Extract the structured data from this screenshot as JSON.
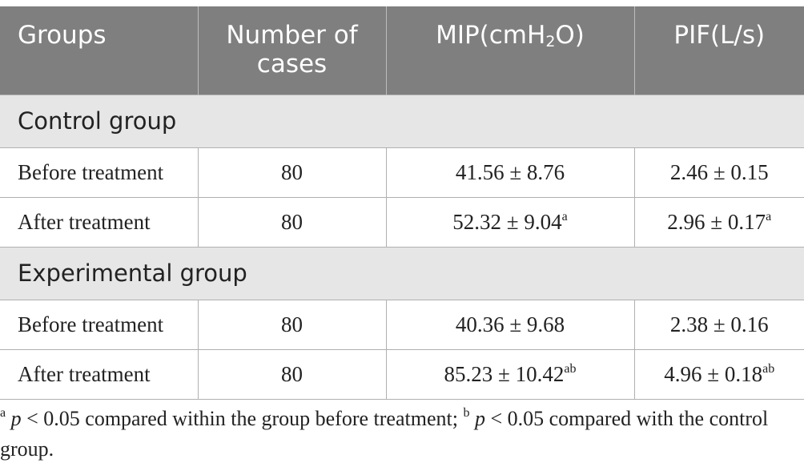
{
  "table": {
    "headers": {
      "groups": "Groups",
      "cases": "Number of cases",
      "mip_prefix": "MIP(cmH",
      "mip_sub": "2",
      "mip_suffix": "O)",
      "pif": "PIF(L/s)"
    },
    "sections": [
      {
        "label": "Control group",
        "rows": [
          {
            "stage": "Before treatment",
            "n": "80",
            "mip": "41.56 ± 8.76",
            "mip_sup": "",
            "pif": "2.46 ± 0.15",
            "pif_sup": ""
          },
          {
            "stage": "After treatment",
            "n": "80",
            "mip": "52.32 ± 9.04",
            "mip_sup": "a",
            "pif": "2.96 ± 0.17",
            "pif_sup": "a"
          }
        ]
      },
      {
        "label": "Experimental group",
        "rows": [
          {
            "stage": "Before treatment",
            "n": "80",
            "mip": "40.36 ± 9.68",
            "mip_sup": "",
            "pif": "2.38 ± 0.16",
            "pif_sup": ""
          },
          {
            "stage": "After treatment",
            "n": "80",
            "mip": "85.23 ± 10.42",
            "mip_sup": "ab",
            "pif": "4.96 ± 0.18",
            "pif_sup": "ab"
          }
        ]
      }
    ]
  },
  "footnote": {
    "mark_a": "a",
    "p_a": "p",
    "text_a": " < 0.05 compared within the group before treatment; ",
    "mark_b": "b",
    "p_b": "p",
    "text_b": " < 0.05 compared with the control group."
  }
}
